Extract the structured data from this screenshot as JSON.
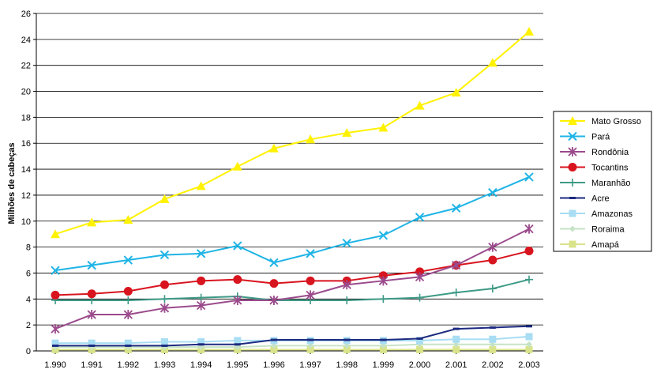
{
  "chart_data": {
    "type": "line",
    "ylabel": "Milhões de cabeças",
    "xlabel": "",
    "ylim": [
      0,
      26
    ],
    "y_ticks": [
      0,
      2,
      4,
      6,
      8,
      10,
      12,
      14,
      16,
      18,
      20,
      22,
      24,
      26
    ],
    "x": [
      "1.990",
      "1.991",
      "1.992",
      "1.993",
      "1.994",
      "1.995",
      "1.996",
      "1.997",
      "1.998",
      "1.999",
      "2.000",
      "2.001",
      "2.002",
      "2.003"
    ],
    "grid": "horizontal",
    "legend_position": "right",
    "series": [
      {
        "name": "Mato Grosso",
        "color": "#FFF200",
        "marker": "triangle",
        "values": [
          9.0,
          9.9,
          10.1,
          11.7,
          12.7,
          14.2,
          15.6,
          16.3,
          16.8,
          17.2,
          18.9,
          19.9,
          22.2,
          24.6
        ]
      },
      {
        "name": "Pará",
        "color": "#1FB4E6",
        "marker": "x",
        "values": [
          6.2,
          6.6,
          7.0,
          7.4,
          7.5,
          8.1,
          6.8,
          7.5,
          8.3,
          8.9,
          10.3,
          11.0,
          12.2,
          13.4
        ]
      },
      {
        "name": "Rondônia",
        "color": "#9B4A8C",
        "marker": "star",
        "values": [
          1.7,
          2.8,
          2.8,
          3.3,
          3.5,
          3.9,
          3.9,
          4.3,
          5.1,
          5.4,
          5.7,
          6.6,
          8.0,
          9.4
        ]
      },
      {
        "name": "Tocantins",
        "color": "#D8141E",
        "marker": "circle",
        "values": [
          4.3,
          4.4,
          4.6,
          5.1,
          5.4,
          5.5,
          5.2,
          5.4,
          5.4,
          5.8,
          6.1,
          6.6,
          7.0,
          7.7
        ]
      },
      {
        "name": "Maranhão",
        "color": "#3D9A86",
        "marker": "plus",
        "values": [
          3.9,
          3.9,
          3.9,
          4.0,
          4.1,
          4.2,
          3.9,
          3.9,
          3.9,
          4.0,
          4.1,
          4.5,
          4.8,
          5.5
        ]
      },
      {
        "name": "Acre",
        "color": "#1C2A80",
        "marker": "dash",
        "values": [
          0.4,
          0.4,
          0.4,
          0.4,
          0.5,
          0.5,
          0.85,
          0.85,
          0.85,
          0.85,
          0.95,
          1.7,
          1.8,
          1.9
        ]
      },
      {
        "name": "Amazonas",
        "color": "#A8DDF3",
        "marker": "square",
        "values": [
          0.6,
          0.6,
          0.6,
          0.7,
          0.7,
          0.8,
          0.8,
          0.8,
          0.8,
          0.8,
          0.8,
          0.9,
          0.9,
          1.1
        ]
      },
      {
        "name": "Roraima",
        "color": "#C7E3C7",
        "marker": "diamond",
        "values": [
          0.3,
          0.3,
          0.3,
          0.3,
          0.3,
          0.3,
          0.4,
          0.4,
          0.4,
          0.4,
          0.5,
          0.5,
          0.5,
          0.5
        ]
      },
      {
        "name": "Amapá",
        "color": "#D9E38A",
        "marker": "square",
        "values": [
          0.1,
          0.1,
          0.1,
          0.1,
          0.1,
          0.1,
          0.1,
          0.1,
          0.1,
          0.1,
          0.1,
          0.1,
          0.1,
          0.1
        ]
      }
    ]
  }
}
